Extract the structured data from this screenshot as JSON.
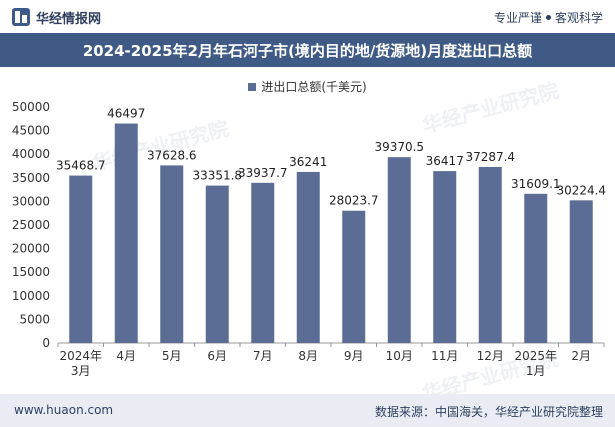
{
  "header": {
    "brand": "华经情报网",
    "tagline_left": "专业严谨",
    "tagline_right": "客观科学"
  },
  "footer": {
    "website": "www.huaon.com",
    "source": "数据来源：中国海关，华经产业研究院整理"
  },
  "colors": {
    "bar": "#5c6d95",
    "title_bg": "#3f5a85",
    "footer_bg": "#e9edf3"
  },
  "chart_data": {
    "type": "bar",
    "title": "2024-2025年2月年石河子市(境内目的地/货源地)月度进出口总额",
    "legend": "进出口总额(千美元)",
    "categories": [
      "2024年\n3月",
      "4月",
      "5月",
      "6月",
      "7月",
      "8月",
      "9月",
      "10月",
      "11月",
      "12月",
      "2025年\n1月",
      "2月"
    ],
    "values": [
      35468.7,
      46497,
      37628.6,
      33351.8,
      33937.7,
      36241,
      28023.7,
      39370.5,
      36417,
      37287.4,
      31609.1,
      30224.4
    ],
    "value_labels": [
      "35468.7",
      "46497",
      "37628.6",
      "33351.8",
      "33937.7",
      "36241",
      "28023.7",
      "39370.5",
      "36417",
      "37287.4",
      "31609.1",
      "30224.4"
    ],
    "ylim": [
      0,
      50000
    ],
    "yticks": [
      0,
      5000,
      10000,
      15000,
      20000,
      25000,
      30000,
      35000,
      40000,
      45000,
      50000
    ],
    "xlabel": "",
    "ylabel": ""
  }
}
